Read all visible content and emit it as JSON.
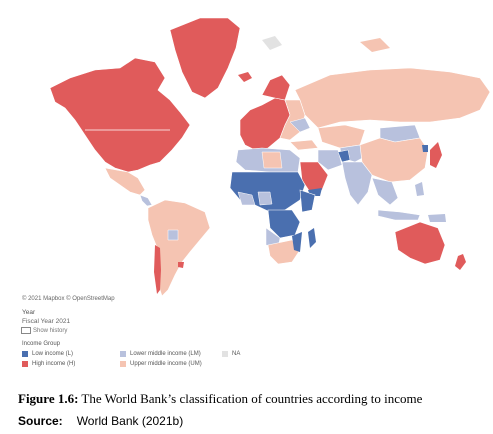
{
  "map": {
    "colors": {
      "low": "#4a6faf",
      "lower_middle": "#b8c1dd",
      "upper_middle": "#f5c4b2",
      "high": "#e05b5b",
      "na": "#e2e2e2"
    }
  },
  "attribution": "© 2021 Mapbox © OpenStreetMap",
  "filter": {
    "label": "Year",
    "value": "Fiscal Year 2021",
    "history_label": "Show history"
  },
  "legend": {
    "title": "Income Group",
    "items": [
      {
        "label": "Low income (L)",
        "color": "#4a6faf"
      },
      {
        "label": "Lower middle income (LM)",
        "color": "#b8c1dd"
      },
      {
        "label": "NA",
        "color": "#e2e2e2"
      },
      {
        "label": "High income (H)",
        "color": "#e05b5b"
      },
      {
        "label": "Upper middle income (UM)",
        "color": "#f5c4b2"
      }
    ]
  },
  "caption": {
    "prefix": "Figure 1.6:",
    "text": " The World Bank’s classification of countries according to income"
  },
  "source": {
    "label": "Source:",
    "text": "World Bank (2021b)"
  }
}
